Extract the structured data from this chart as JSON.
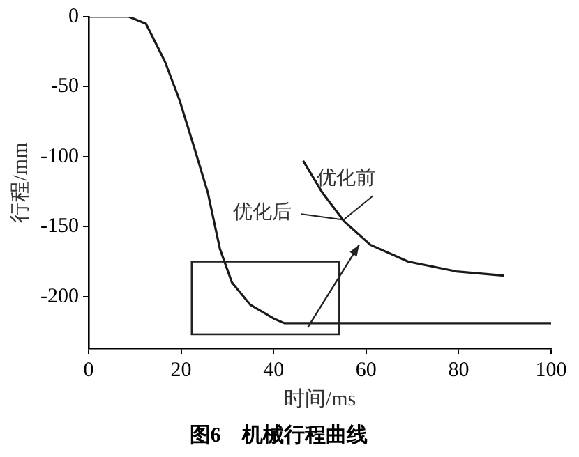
{
  "chart_data": {
    "type": "line",
    "title": "图6　机械行程曲线",
    "xlabel": "时间/ms",
    "ylabel": "行程/mm",
    "xlim": [
      0,
      100
    ],
    "xticks": [
      0,
      20,
      40,
      60,
      80,
      100
    ],
    "ylim": [
      -237,
      0
    ],
    "yticks": [
      0,
      -50,
      -100,
      -150,
      -200
    ],
    "grid": false,
    "legend": false,
    "marker": "none",
    "line_style": "solid",
    "series": [
      {
        "color": "#1a1a1a",
        "x": [
          0,
          8.7,
          12.4,
          16.5,
          19.6,
          22.7,
          25.8,
          28.4,
          31,
          35,
          40.2,
          42.3,
          50,
          100
        ],
        "values": [
          0,
          0,
          -5,
          -32,
          -59,
          -92,
          -126,
          -166,
          -190,
          -206,
          -216,
          -219,
          -219,
          -219
        ]
      },
      {
        "color": "#1a1a1a",
        "x": [
          46.4,
          50.6,
          55.2,
          60.9,
          69.1,
          79.5,
          89.8
        ],
        "values": [
          -103,
          -126,
          -146,
          -163,
          -175,
          -182,
          -185
        ]
      }
    ],
    "annotations": [
      "优化后",
      "优化前"
    ]
  }
}
